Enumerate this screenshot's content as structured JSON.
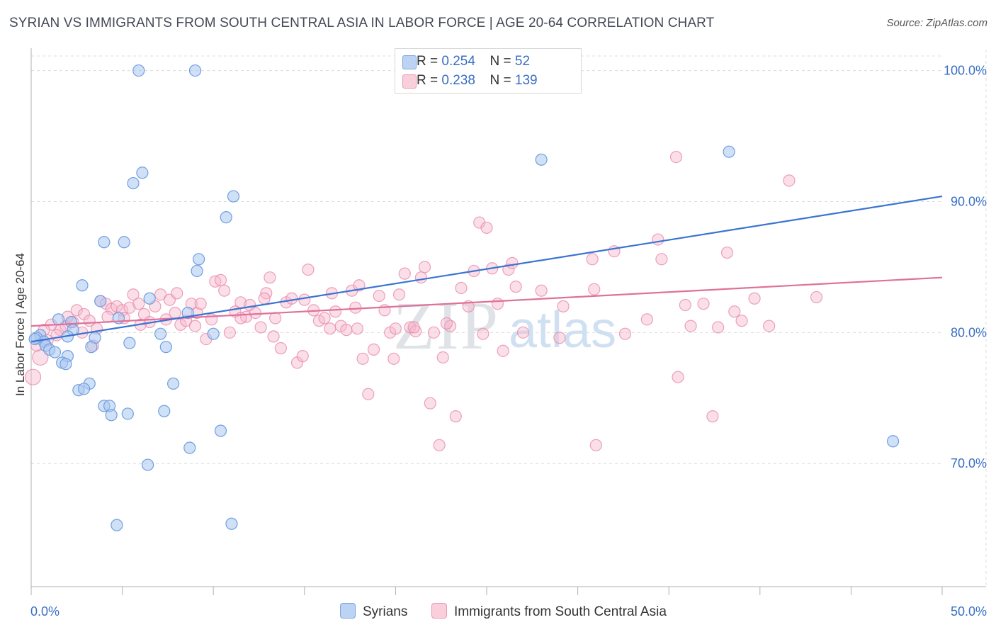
{
  "title": "SYRIAN VS IMMIGRANTS FROM SOUTH CENTRAL ASIA IN LABOR FORCE | AGE 20-64 CORRELATION CHART",
  "source": "Source: ZipAtlas.com",
  "watermark": {
    "zip": "ZIP",
    "atlas": "atlas"
  },
  "legend": {
    "rows": [
      {
        "r_label": "R =",
        "r_value": "0.254",
        "n_label": "N =",
        "n_value": "52",
        "color": "#a9c6f0"
      },
      {
        "r_label": "R =",
        "r_value": "0.238",
        "n_label": "N =",
        "n_value": "139",
        "color": "#f6b8cb"
      }
    ]
  },
  "bottom_legend": {
    "series1": "Syrians",
    "series2": "Immigrants from South Central Asia"
  },
  "chart_data": {
    "type": "scatter",
    "title": "SYRIAN VS IMMIGRANTS FROM SOUTH CENTRAL ASIA IN LABOR FORCE | AGE 20-64 CORRELATION CHART",
    "xlabel": "",
    "ylabel": "In Labor Force | Age 20-64",
    "xlim": [
      0,
      50
    ],
    "ylim": [
      60.6,
      101.6
    ],
    "x_tick_labels": [
      "0.0%",
      "50.0%"
    ],
    "y_ticks": [
      70,
      80,
      90,
      100
    ],
    "y_tick_labels": [
      "70.0%",
      "80.0%",
      "90.0%",
      "100.0%"
    ],
    "grid": true,
    "legend_position": "top-center",
    "series": [
      {
        "name": "Syrians",
        "color": "#6f9fe0",
        "fill": "#a9c6f0",
        "trend": {
          "x": [
            0,
            50
          ],
          "y": [
            79.3,
            90.4
          ]
        },
        "points": [
          [
            5.9,
            100.0
          ],
          [
            9.0,
            100.0
          ],
          [
            28.0,
            93.2
          ],
          [
            38.3,
            93.8
          ],
          [
            6.1,
            92.2
          ],
          [
            5.6,
            91.4
          ],
          [
            11.1,
            90.4
          ],
          [
            10.7,
            88.8
          ],
          [
            4.0,
            86.9
          ],
          [
            5.1,
            86.9
          ],
          [
            9.2,
            85.6
          ],
          [
            9.1,
            84.7
          ],
          [
            2.8,
            83.6
          ],
          [
            3.8,
            82.4
          ],
          [
            6.5,
            82.6
          ],
          [
            8.6,
            81.5
          ],
          [
            4.8,
            81.1
          ],
          [
            1.5,
            81.0
          ],
          [
            2.2,
            80.8
          ],
          [
            2.3,
            80.2
          ],
          [
            7.1,
            79.9
          ],
          [
            10.0,
            79.9
          ],
          [
            0.5,
            79.8
          ],
          [
            0.3,
            79.6
          ],
          [
            2.0,
            79.7
          ],
          [
            3.5,
            79.6
          ],
          [
            0.7,
            79.3
          ],
          [
            5.4,
            79.2
          ],
          [
            0.8,
            79.0
          ],
          [
            1.0,
            78.7
          ],
          [
            3.3,
            78.9
          ],
          [
            7.4,
            78.9
          ],
          [
            1.3,
            78.5
          ],
          [
            2.0,
            78.2
          ],
          [
            1.7,
            77.7
          ],
          [
            1.9,
            77.6
          ],
          [
            3.2,
            76.1
          ],
          [
            7.8,
            76.1
          ],
          [
            2.6,
            75.6
          ],
          [
            2.9,
            75.7
          ],
          [
            4.0,
            74.4
          ],
          [
            4.3,
            74.4
          ],
          [
            5.3,
            73.8
          ],
          [
            4.4,
            73.7
          ],
          [
            7.3,
            74.0
          ],
          [
            10.4,
            72.5
          ],
          [
            8.7,
            71.2
          ],
          [
            47.3,
            71.7
          ],
          [
            6.4,
            69.9
          ],
          [
            4.7,
            65.3
          ],
          [
            11.0,
            65.4
          ],
          [
            0.2,
            79.5
          ]
        ]
      },
      {
        "name": "Immigrants from South Central Asia",
        "color": "#e88aab",
        "fill": "#f6b8cb",
        "trend": {
          "x": [
            0,
            50
          ],
          "y": [
            80.5,
            84.2
          ]
        },
        "points": [
          [
            0.1,
            76.6
          ],
          [
            0.5,
            78.1
          ],
          [
            0.3,
            79.0
          ],
          [
            0.9,
            79.4
          ],
          [
            1.1,
            80.6
          ],
          [
            1.6,
            80.2
          ],
          [
            1.9,
            80.5
          ],
          [
            2.3,
            80.8
          ],
          [
            2.5,
            81.7
          ],
          [
            2.9,
            81.4
          ],
          [
            3.2,
            80.9
          ],
          [
            3.4,
            79.0
          ],
          [
            3.8,
            82.4
          ],
          [
            4.1,
            82.2
          ],
          [
            4.4,
            81.8
          ],
          [
            4.7,
            82.0
          ],
          [
            5.0,
            81.7
          ],
          [
            5.1,
            81.1
          ],
          [
            5.4,
            81.9
          ],
          [
            5.6,
            82.9
          ],
          [
            5.9,
            82.2
          ],
          [
            6.2,
            81.4
          ],
          [
            6.5,
            80.8
          ],
          [
            6.8,
            82.0
          ],
          [
            7.1,
            82.9
          ],
          [
            7.4,
            81.0
          ],
          [
            7.6,
            82.5
          ],
          [
            7.9,
            81.5
          ],
          [
            8.2,
            80.6
          ],
          [
            8.5,
            80.9
          ],
          [
            8.8,
            82.2
          ],
          [
            9.1,
            81.5
          ],
          [
            9.3,
            82.2
          ],
          [
            9.6,
            79.5
          ],
          [
            9.9,
            81.0
          ],
          [
            10.1,
            83.9
          ],
          [
            10.4,
            84.0
          ],
          [
            10.6,
            83.2
          ],
          [
            10.9,
            80.0
          ],
          [
            11.2,
            81.6
          ],
          [
            11.5,
            82.3
          ],
          [
            11.8,
            81.2
          ],
          [
            12.0,
            82.1
          ],
          [
            12.3,
            81.5
          ],
          [
            12.6,
            80.4
          ],
          [
            12.9,
            83.0
          ],
          [
            13.1,
            84.2
          ],
          [
            13.4,
            81.1
          ],
          [
            13.7,
            78.8
          ],
          [
            14.0,
            82.3
          ],
          [
            14.3,
            82.6
          ],
          [
            14.6,
            77.7
          ],
          [
            14.9,
            78.2
          ],
          [
            15.2,
            84.8
          ],
          [
            15.5,
            81.7
          ],
          [
            15.8,
            80.9
          ],
          [
            16.1,
            81.1
          ],
          [
            16.4,
            80.3
          ],
          [
            16.7,
            81.6
          ],
          [
            17.0,
            80.5
          ],
          [
            17.3,
            80.2
          ],
          [
            17.6,
            83.2
          ],
          [
            17.9,
            80.3
          ],
          [
            18.2,
            78.0
          ],
          [
            18.5,
            75.3
          ],
          [
            18.8,
            78.7
          ],
          [
            19.1,
            82.8
          ],
          [
            19.4,
            81.7
          ],
          [
            19.7,
            80.0
          ],
          [
            19.9,
            78.0
          ],
          [
            20.2,
            82.9
          ],
          [
            20.5,
            84.5
          ],
          [
            20.8,
            80.4
          ],
          [
            21.1,
            80.1
          ],
          [
            21.4,
            84.2
          ],
          [
            21.6,
            85.0
          ],
          [
            21.9,
            74.6
          ],
          [
            22.1,
            80.0
          ],
          [
            22.4,
            71.4
          ],
          [
            22.6,
            78.1
          ],
          [
            23.0,
            80.5
          ],
          [
            23.3,
            73.6
          ],
          [
            23.6,
            83.4
          ],
          [
            24.0,
            82.0
          ],
          [
            24.3,
            84.7
          ],
          [
            24.6,
            88.4
          ],
          [
            25.0,
            88.0
          ],
          [
            25.3,
            84.9
          ],
          [
            25.6,
            82.2
          ],
          [
            25.9,
            78.6
          ],
          [
            26.2,
            84.8
          ],
          [
            26.4,
            85.3
          ],
          [
            26.6,
            83.5
          ],
          [
            28.0,
            83.2
          ],
          [
            29.2,
            82.0
          ],
          [
            30.8,
            85.6
          ],
          [
            30.9,
            83.3
          ],
          [
            32.0,
            86.2
          ],
          [
            32.6,
            79.9
          ],
          [
            33.8,
            81.0
          ],
          [
            34.4,
            87.1
          ],
          [
            34.6,
            85.6
          ],
          [
            35.4,
            93.4
          ],
          [
            35.5,
            76.6
          ],
          [
            35.9,
            82.1
          ],
          [
            36.2,
            80.5
          ],
          [
            36.9,
            82.2
          ],
          [
            37.4,
            73.6
          ],
          [
            37.7,
            80.4
          ],
          [
            38.2,
            86.1
          ],
          [
            38.6,
            81.6
          ],
          [
            39.0,
            80.9
          ],
          [
            39.7,
            82.6
          ],
          [
            40.5,
            80.5
          ],
          [
            41.6,
            91.6
          ],
          [
            43.1,
            82.7
          ],
          [
            2.0,
            81.2
          ],
          [
            2.8,
            80.0
          ],
          [
            3.6,
            80.3
          ],
          [
            6.0,
            80.6
          ],
          [
            8.0,
            83.0
          ],
          [
            11.5,
            81.1
          ],
          [
            12.8,
            82.6
          ],
          [
            15.0,
            82.5
          ],
          [
            16.5,
            83.0
          ],
          [
            18.0,
            83.6
          ],
          [
            27.0,
            80.0
          ],
          [
            29.0,
            79.6
          ],
          [
            31.0,
            71.4
          ],
          [
            24.8,
            79.9
          ],
          [
            20.0,
            80.3
          ],
          [
            21.0,
            80.4
          ],
          [
            22.8,
            80.7
          ],
          [
            13.3,
            79.7
          ],
          [
            17.8,
            81.9
          ],
          [
            9.0,
            80.5
          ],
          [
            4.2,
            81.2
          ],
          [
            1.4,
            79.8
          ],
          [
            0.7,
            80.2
          ]
        ]
      }
    ]
  }
}
